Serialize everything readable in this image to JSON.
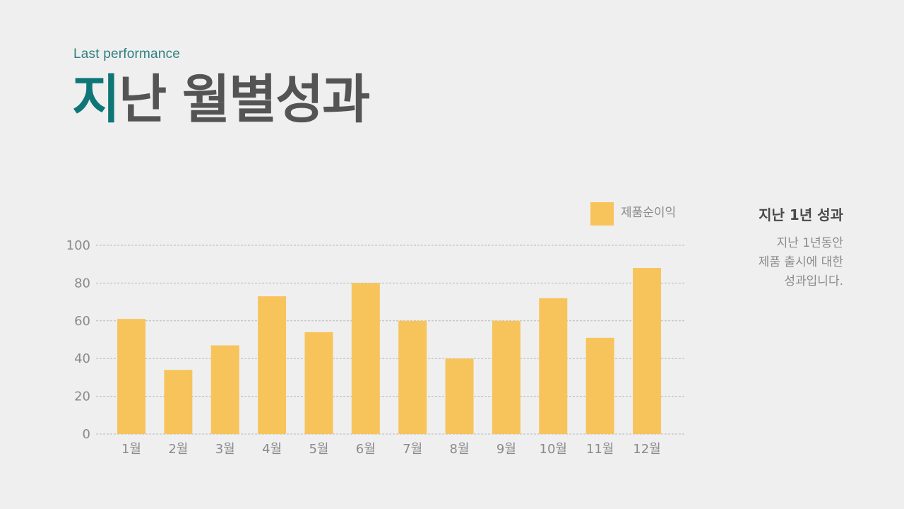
{
  "header": {
    "subtitle": "Last performance",
    "title_accent": "지",
    "title_rest": "난 월별성과"
  },
  "side": {
    "title": "지난 1년 성과",
    "lines": [
      "지난 1년동안",
      "제품 출시에 대한",
      "성과입니다."
    ]
  },
  "colors": {
    "background": "#efefef",
    "bar": "#f7c45c",
    "accent": "#0f7677",
    "title": "#545454"
  },
  "chart_data": {
    "type": "bar",
    "categories": [
      "1월",
      "2월",
      "3월",
      "4월",
      "5월",
      "6월",
      "7월",
      "8월",
      "9월",
      "10월",
      "11월",
      "12월"
    ],
    "series": [
      {
        "name": "제품순이익",
        "values": [
          61,
          34,
          47,
          73,
          54,
          80,
          60,
          40,
          60,
          72,
          51,
          88
        ]
      }
    ],
    "title": "",
    "xlabel": "",
    "ylabel": "",
    "ylim": [
      0,
      100
    ],
    "yticks": [
      "0",
      "20",
      "40",
      "60",
      "80",
      "100"
    ],
    "grid": true,
    "legend_position": "top-right"
  }
}
